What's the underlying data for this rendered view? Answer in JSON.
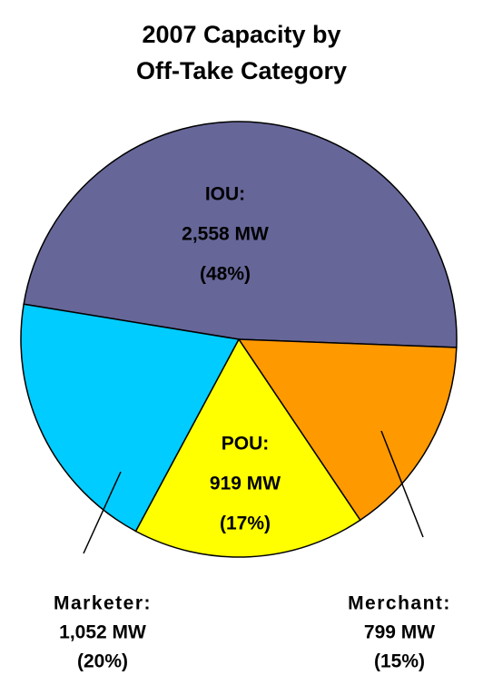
{
  "chart_data": {
    "type": "pie",
    "title": [
      "2007 Capacity by",
      "Off-Take Category"
    ],
    "categories": [
      "IOU:",
      "Merchant:",
      "POU:",
      "Marketer:"
    ],
    "values": [
      2558,
      799,
      919,
      1052
    ],
    "value_labels": [
      "2,558 MW",
      "799 MW",
      "919 MW",
      "1,052 MW"
    ],
    "percents": [
      48,
      15,
      17,
      20
    ],
    "percent_labels": [
      "(48%)",
      "(15%)",
      "(17%)",
      "(20%)"
    ],
    "colors": [
      "#666699",
      "#ff9900",
      "#ffff00",
      "#00ccff"
    ]
  }
}
